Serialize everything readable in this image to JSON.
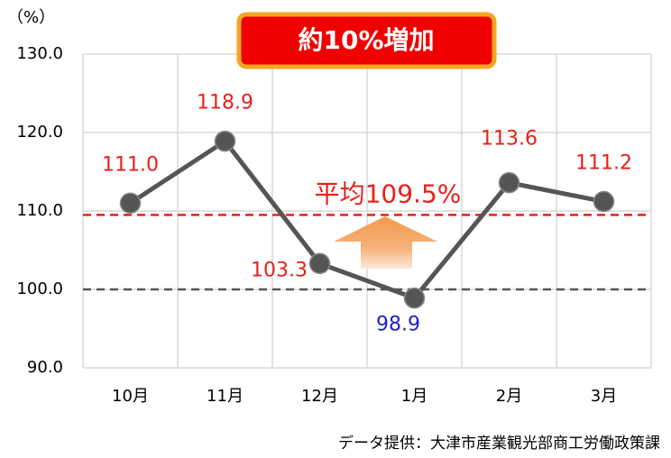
{
  "chart_data": {
    "type": "line",
    "unit_label": "（%）",
    "annotation": "約10%増加",
    "source": "データ提供：大津市産業観光部商工労働政策課",
    "categories": [
      "10月",
      "11月",
      "12月",
      "1月",
      "2月",
      "3月"
    ],
    "values": [
      111.0,
      118.9,
      103.3,
      98.9,
      113.6,
      111.2
    ],
    "value_labels": [
      "111.0",
      "118.9",
      "103.3",
      "98.9",
      "113.6",
      "111.2"
    ],
    "value_label_colors": [
      "#e8201a",
      "#e8201a",
      "#e8201a",
      "#1f1fd0",
      "#e8201a",
      "#e8201a"
    ],
    "color": "#555555",
    "ylim": [
      90,
      130
    ],
    "yticks": [
      {
        "value": 90,
        "label": "90.0"
      },
      {
        "value": 100,
        "label": "100.0"
      },
      {
        "value": 110,
        "label": "110.0"
      },
      {
        "value": 120,
        "label": "120.0"
      },
      {
        "value": 130,
        "label": "130.0"
      }
    ],
    "grid": true,
    "reference_lines": [
      {
        "value": 109.5,
        "label": "平均109.5%",
        "color": "#e8201a"
      },
      {
        "value": 100,
        "color": "#555555"
      }
    ]
  }
}
